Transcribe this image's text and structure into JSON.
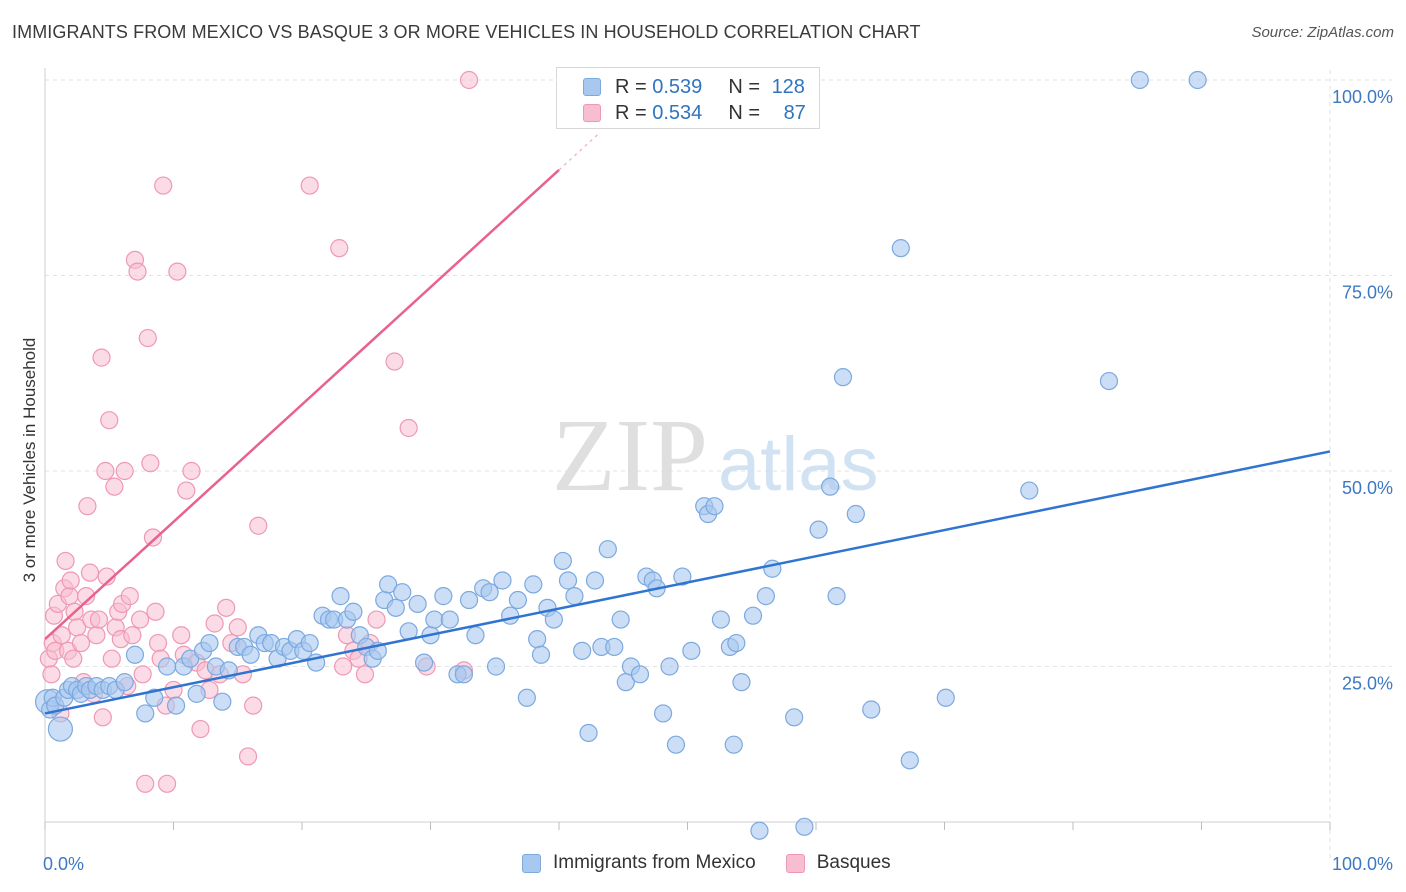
{
  "header": {
    "title": "IMMIGRANTS FROM MEXICO VS BASQUE 3 OR MORE VEHICLES IN HOUSEHOLD CORRELATION CHART",
    "source": "Source: ZipAtlas.com"
  },
  "legend_top": {
    "series1": {
      "r_label": "R = ",
      "r_value": "0.539",
      "n_label": "N = ",
      "n_value": "128"
    },
    "series2": {
      "r_label": "R = ",
      "r_value": "0.534",
      "n_label": "N = ",
      "n_value": "87"
    }
  },
  "legend_bottom": {
    "series1": "Immigrants from Mexico",
    "series2": "Basques"
  },
  "watermark": {
    "zip": "ZIP",
    "atlas": "atlas"
  },
  "colors": {
    "blue_fill": "#a9c8ef",
    "blue_stroke": "#7ba9e0",
    "blue_line": "#2f74d0",
    "pink_fill": "#f7bdd0",
    "pink_stroke": "#ef98b5",
    "pink_line": "#e8628c",
    "axis_text": "#3e78c2",
    "grid": "#e2e2e2"
  },
  "chart_data": {
    "type": "scatter",
    "title": "IMMIGRANTS FROM MEXICO VS BASQUE 3 OR MORE VEHICLES IN HOUSEHOLD CORRELATION CHART",
    "xlabel": "",
    "ylabel": "3 or more Vehicles in Household",
    "xlim": [
      0,
      100
    ],
    "ylim": [
      0,
      104
    ],
    "x_tick_labels": [
      {
        "value": 0,
        "label": "0.0%"
      },
      {
        "value": 100,
        "label": "100.0%"
      }
    ],
    "y_tick_labels": [
      {
        "value": 25,
        "label": "25.0%"
      },
      {
        "value": 50,
        "label": "50.0%"
      },
      {
        "value": 75,
        "label": "75.0%"
      },
      {
        "value": 100,
        "label": "100.0%"
      }
    ],
    "grid": true,
    "legend_position": "top-center",
    "series": [
      {
        "name": "Immigrants from Mexico",
        "color": "#a9c8ef",
        "trend": {
          "x": [
            0,
            100
          ],
          "y": [
            19.0,
            52.5
          ]
        },
        "points": [
          [
            0.2,
            20.5
          ],
          [
            0.4,
            19.5
          ],
          [
            0.6,
            21
          ],
          [
            0.8,
            20
          ],
          [
            1.2,
            17
          ],
          [
            1.5,
            21
          ],
          [
            1.8,
            22
          ],
          [
            2.1,
            22.5
          ],
          [
            2.5,
            22
          ],
          [
            2.8,
            21.5
          ],
          [
            3.2,
            22.5
          ],
          [
            3.5,
            22
          ],
          [
            4.0,
            22.5
          ],
          [
            4.5,
            22
          ],
          [
            5.0,
            22.5
          ],
          [
            5.5,
            22
          ],
          [
            6.2,
            23
          ],
          [
            7.0,
            26.5
          ],
          [
            7.8,
            19
          ],
          [
            8.5,
            21
          ],
          [
            9.5,
            25
          ],
          [
            10.2,
            20
          ],
          [
            10.8,
            25
          ],
          [
            11.3,
            26
          ],
          [
            11.8,
            21.5
          ],
          [
            12.3,
            27
          ],
          [
            12.8,
            28
          ],
          [
            13.3,
            25
          ],
          [
            13.8,
            20.5
          ],
          [
            14.3,
            24.5
          ],
          [
            15.0,
            27.5
          ],
          [
            15.5,
            27.5
          ],
          [
            16.0,
            26.5
          ],
          [
            16.6,
            29
          ],
          [
            17.1,
            28
          ],
          [
            17.6,
            28
          ],
          [
            18.1,
            26
          ],
          [
            18.6,
            27.5
          ],
          [
            19.1,
            27
          ],
          [
            19.6,
            28.5
          ],
          [
            20.1,
            27
          ],
          [
            20.6,
            28
          ],
          [
            21.1,
            25.5
          ],
          [
            21.6,
            31.5
          ],
          [
            22.1,
            31
          ],
          [
            22.5,
            31
          ],
          [
            23.0,
            34
          ],
          [
            23.5,
            31
          ],
          [
            24.0,
            32
          ],
          [
            24.5,
            29
          ],
          [
            25.0,
            27.5
          ],
          [
            25.5,
            26
          ],
          [
            25.9,
            27
          ],
          [
            26.4,
            33.5
          ],
          [
            26.7,
            35.5
          ],
          [
            27.3,
            32.5
          ],
          [
            27.8,
            34.5
          ],
          [
            28.3,
            29.5
          ],
          [
            29.0,
            33
          ],
          [
            29.5,
            25.5
          ],
          [
            30.0,
            29
          ],
          [
            30.3,
            31
          ],
          [
            31.0,
            34
          ],
          [
            31.5,
            31
          ],
          [
            32.1,
            24
          ],
          [
            32.6,
            24
          ],
          [
            33.0,
            33.5
          ],
          [
            33.5,
            29
          ],
          [
            34.1,
            35
          ],
          [
            34.6,
            34.5
          ],
          [
            35.1,
            25
          ],
          [
            35.6,
            36
          ],
          [
            36.2,
            31.5
          ],
          [
            36.8,
            33.5
          ],
          [
            37.5,
            21
          ],
          [
            38.0,
            35.5
          ],
          [
            38.3,
            28.5
          ],
          [
            38.6,
            26.5
          ],
          [
            39.1,
            32.5
          ],
          [
            39.6,
            31
          ],
          [
            40.3,
            38.5
          ],
          [
            40.7,
            36
          ],
          [
            41.2,
            34
          ],
          [
            41.8,
            27
          ],
          [
            42.3,
            16.5
          ],
          [
            42.8,
            36
          ],
          [
            43.3,
            27.5
          ],
          [
            43.8,
            40
          ],
          [
            44.3,
            27.5
          ],
          [
            44.8,
            31
          ],
          [
            45.2,
            23
          ],
          [
            45.6,
            25
          ],
          [
            46.3,
            24
          ],
          [
            46.8,
            36.5
          ],
          [
            47.3,
            36
          ],
          [
            47.6,
            35
          ],
          [
            48.1,
            19
          ],
          [
            48.6,
            25
          ],
          [
            49.1,
            15
          ],
          [
            49.6,
            36.5
          ],
          [
            50.3,
            27
          ],
          [
            51.3,
            45.5
          ],
          [
            51.6,
            44.5
          ],
          [
            52.1,
            45.5
          ],
          [
            52.6,
            31
          ],
          [
            53.3,
            27.5
          ],
          [
            53.6,
            15
          ],
          [
            53.8,
            28
          ],
          [
            54.2,
            23
          ],
          [
            55.1,
            31.5
          ],
          [
            55.6,
            4
          ],
          [
            56.1,
            34
          ],
          [
            56.6,
            37.5
          ],
          [
            58.3,
            18.5
          ],
          [
            59.1,
            4.5
          ],
          [
            60.2,
            42.5
          ],
          [
            61.1,
            48
          ],
          [
            61.6,
            34
          ],
          [
            62.1,
            62
          ],
          [
            63.1,
            44.5
          ],
          [
            64.3,
            19.5
          ],
          [
            66.6,
            78.5
          ],
          [
            67.3,
            13
          ],
          [
            70.1,
            21
          ],
          [
            76.6,
            47.5
          ],
          [
            82.8,
            61.5
          ],
          [
            85.2,
            100
          ],
          [
            89.7,
            100
          ]
        ]
      },
      {
        "name": "Basques",
        "color": "#f7bdd0",
        "trend": {
          "x": [
            0,
            40
          ],
          "y": [
            28.5,
            88.5
          ],
          "dashed_extension_to": [
            43,
            93
          ]
        },
        "points": [
          [
            0.3,
            26
          ],
          [
            0.5,
            24
          ],
          [
            0.6,
            28
          ],
          [
            0.7,
            31.5
          ],
          [
            0.8,
            27
          ],
          [
            1.0,
            33
          ],
          [
            1.2,
            19
          ],
          [
            1.3,
            29
          ],
          [
            1.5,
            35
          ],
          [
            1.6,
            38.5
          ],
          [
            1.8,
            27
          ],
          [
            1.9,
            34
          ],
          [
            2.0,
            36
          ],
          [
            2.2,
            26
          ],
          [
            2.3,
            32
          ],
          [
            2.5,
            30
          ],
          [
            2.8,
            28
          ],
          [
            3.0,
            23
          ],
          [
            3.2,
            34
          ],
          [
            3.3,
            45.5
          ],
          [
            3.5,
            37
          ],
          [
            3.6,
            31
          ],
          [
            3.8,
            21.5
          ],
          [
            4.0,
            29
          ],
          [
            4.2,
            31
          ],
          [
            4.4,
            64.5
          ],
          [
            4.5,
            18.5
          ],
          [
            4.7,
            50
          ],
          [
            4.8,
            36.5
          ],
          [
            5.0,
            56.5
          ],
          [
            5.2,
            26
          ],
          [
            5.4,
            48
          ],
          [
            5.5,
            30
          ],
          [
            5.7,
            32
          ],
          [
            5.9,
            28.5
          ],
          [
            6.0,
            33
          ],
          [
            6.2,
            50
          ],
          [
            6.4,
            22.5
          ],
          [
            6.6,
            34
          ],
          [
            6.8,
            29
          ],
          [
            7.0,
            77
          ],
          [
            7.2,
            75.5
          ],
          [
            7.4,
            31
          ],
          [
            7.6,
            24
          ],
          [
            7.8,
            10
          ],
          [
            8.0,
            67
          ],
          [
            8.2,
            51
          ],
          [
            8.4,
            41.5
          ],
          [
            8.6,
            32
          ],
          [
            8.8,
            28
          ],
          [
            9.0,
            26
          ],
          [
            9.2,
            86.5
          ],
          [
            9.4,
            20
          ],
          [
            9.5,
            10
          ],
          [
            10.0,
            22
          ],
          [
            10.3,
            75.5
          ],
          [
            10.6,
            29
          ],
          [
            10.8,
            26.5
          ],
          [
            11.0,
            47.5
          ],
          [
            11.4,
            50
          ],
          [
            11.8,
            25.5
          ],
          [
            12.1,
            17
          ],
          [
            12.5,
            24.5
          ],
          [
            12.8,
            22
          ],
          [
            13.2,
            30.5
          ],
          [
            13.6,
            24
          ],
          [
            14.1,
            32.5
          ],
          [
            14.5,
            28
          ],
          [
            15.0,
            30
          ],
          [
            15.4,
            24
          ],
          [
            15.8,
            13.5
          ],
          [
            16.2,
            20
          ],
          [
            16.6,
            43
          ],
          [
            20.6,
            86.5
          ],
          [
            22.9,
            78.5
          ],
          [
            23.2,
            25
          ],
          [
            23.5,
            29
          ],
          [
            24.0,
            27
          ],
          [
            24.4,
            26
          ],
          [
            24.9,
            24
          ],
          [
            25.3,
            28
          ],
          [
            25.8,
            31
          ],
          [
            27.2,
            64
          ],
          [
            28.3,
            55.5
          ],
          [
            29.7,
            25
          ],
          [
            32.6,
            24.5
          ],
          [
            33.0,
            100
          ]
        ]
      }
    ]
  }
}
